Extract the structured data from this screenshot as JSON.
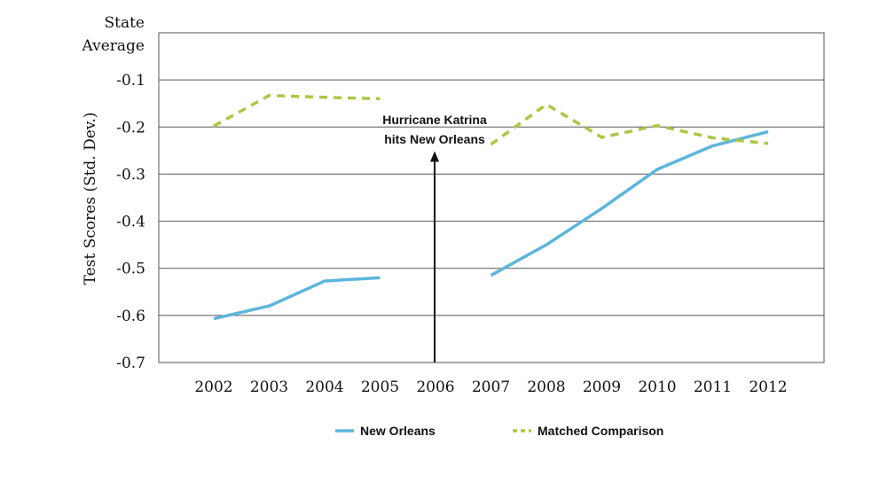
{
  "chart_data": {
    "type": "line",
    "ylabel": "Test Scores (Std. Dev.)",
    "y_top_label": [
      "State",
      "Average"
    ],
    "ylim": [
      -0.7,
      0.0
    ],
    "yticks": [
      "-0.1",
      "-0.2",
      "-0.3",
      "-0.4",
      "-0.5",
      "-0.6",
      "-0.7"
    ],
    "ytick_values": [
      -0.1,
      -0.2,
      -0.3,
      -0.4,
      -0.5,
      -0.6,
      -0.7
    ],
    "x": [
      "2002",
      "2003",
      "2004",
      "2005",
      "2006",
      "2007",
      "2008",
      "2009",
      "2010",
      "2011",
      "2012"
    ],
    "grid": true,
    "legend_position": "bottom",
    "series": [
      {
        "name": "New Orleans",
        "color": "#5cb6dc",
        "style": "solid",
        "values": [
          -0.607,
          -0.58,
          -0.527,
          -0.52,
          null,
          -0.515,
          -0.45,
          -0.373,
          -0.29,
          -0.24,
          -0.21
        ]
      },
      {
        "name": "Matched Comparison",
        "color": "#a9c845",
        "style": "dashed",
        "values": [
          -0.198,
          -0.133,
          -0.137,
          -0.14,
          null,
          -0.237,
          -0.152,
          -0.222,
          -0.197,
          -0.223,
          -0.235
        ]
      }
    ],
    "annotation": {
      "lines": [
        "Hurricane Katrina",
        "hits New Orleans"
      ],
      "x": "2006",
      "arrow_from": -0.7,
      "arrow_to": -0.255
    }
  }
}
